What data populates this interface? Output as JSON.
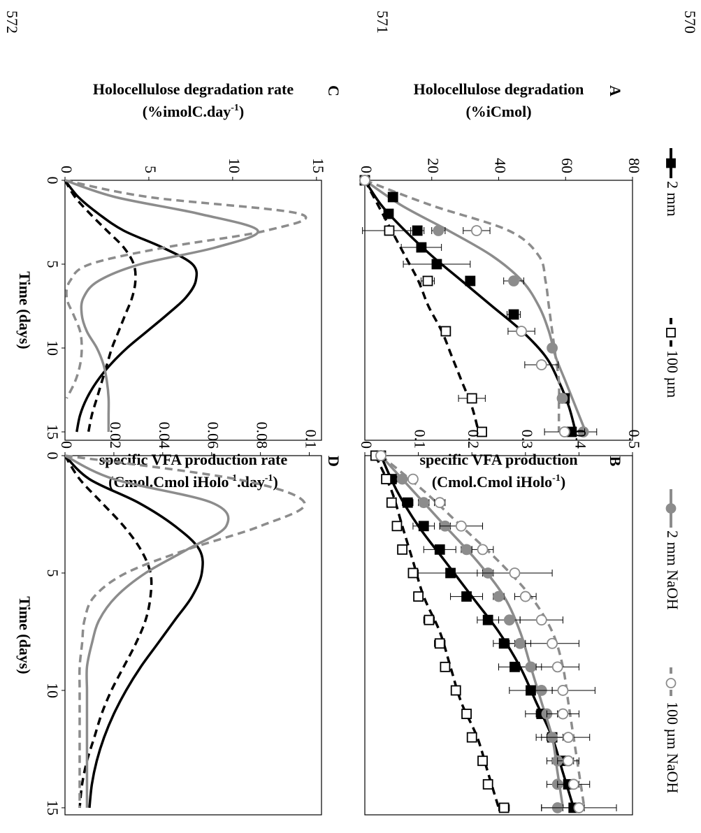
{
  "line_numbers": [
    "570",
    "571",
    "572"
  ],
  "chart_data": [
    {
      "type": "scatter",
      "panel": "A",
      "ylabel": [
        [
          "Holocellulose degradation"
        ],
        [
          "(%iCmol)"
        ]
      ],
      "xlim": [
        0,
        15.5
      ],
      "ylim": [
        0,
        80
      ],
      "yticks": [
        0,
        20,
        40,
        60,
        80
      ],
      "series": [
        {
          "name": "2 mm",
          "color": "#000000",
          "dash": false,
          "marker": "square",
          "filled": true,
          "x": [
            0,
            1,
            2,
            3,
            4,
            5,
            6,
            8,
            13,
            15
          ],
          "values": [
            0,
            8.4,
            7.1,
            15.7,
            16.9,
            21.5,
            31.5,
            44.5,
            59.7,
            61.8
          ],
          "errors": [
            0,
            1,
            1,
            2,
            6,
            10,
            1,
            2,
            1,
            1
          ],
          "fit_x": [
            0,
            1.5,
            3,
            4.5,
            6,
            7.5,
            9,
            10.5,
            12,
            13.5,
            15
          ],
          "fit": [
            0,
            5,
            12,
            20,
            29,
            38,
            47,
            54,
            58,
            61,
            63
          ]
        },
        {
          "name": "100 µm",
          "color": "#000000",
          "dash": true,
          "marker": "square",
          "filled": false,
          "x": [
            0,
            3,
            6,
            9,
            13,
            15
          ],
          "values": [
            0,
            7.3,
            18.8,
            24.2,
            32,
            35
          ],
          "errors": [
            0,
            8,
            2,
            1,
            4,
            1
          ],
          "fit_x": [
            0,
            1.5,
            3,
            4.5,
            6,
            7.5,
            9,
            10.5,
            12,
            13.5,
            15
          ],
          "fit": [
            0,
            4,
            8,
            12,
            16,
            19,
            23,
            26,
            29,
            32,
            34
          ]
        },
        {
          "name": "2 mm NaOH",
          "color": "#8c8c8c",
          "dash": false,
          "marker": "circle",
          "filled": true,
          "x": [
            0,
            3,
            6,
            10,
            13,
            15
          ],
          "values": [
            0,
            22,
            44.5,
            56,
            59,
            65.3
          ],
          "errors": [
            0,
            2,
            3,
            1,
            1,
            4
          ],
          "fit_x": [
            0,
            1.5,
            3,
            4.5,
            6,
            7.5,
            9,
            10.5,
            12,
            13.5,
            15
          ],
          "fit": [
            0,
            11,
            25,
            38,
            47,
            52,
            55,
            57,
            60,
            63,
            66
          ]
        },
        {
          "name": "100 µm NaOH",
          "color": "#8c8c8c",
          "dash": true,
          "marker": "circle",
          "filled": false,
          "x": [
            0,
            3,
            9,
            11,
            15
          ],
          "values": [
            0,
            33.4,
            46.8,
            52.8,
            59.7
          ],
          "errors": [
            0,
            4,
            4,
            5,
            6
          ],
          "fit_x": [
            0,
            1.5,
            3,
            4.5,
            6,
            7.5,
            9,
            10.5,
            12,
            13.5,
            15
          ],
          "fit": [
            0,
            20,
            43,
            52,
            54,
            55,
            56,
            57,
            58,
            58,
            58
          ]
        }
      ]
    },
    {
      "type": "scatter",
      "panel": "B",
      "ylabel": [
        [
          "specific VFA production"
        ],
        [
          "(Cmol.Cmol iHolo",
          "-1",
          ")"
        ]
      ],
      "xlim": [
        0,
        15.3
      ],
      "ylim": [
        0,
        0.5
      ],
      "yticks": [
        0,
        0.1,
        0.2,
        0.3,
        0.4,
        0.5
      ],
      "series": [
        {
          "name": "2 mm",
          "color": "#000000",
          "dash": false,
          "marker": "square",
          "filled": true,
          "x": [
            0,
            1,
            2,
            3,
            4,
            5,
            6,
            7,
            8,
            9,
            10,
            11,
            12,
            13,
            14,
            15
          ],
          "values": [
            0.03,
            0.05,
            0.08,
            0.11,
            0.14,
            0.16,
            0.19,
            0.23,
            0.26,
            0.28,
            0.31,
            0.33,
            0.35,
            0.37,
            0.38,
            0.39
          ],
          "errors": [
            0,
            0.01,
            0.01,
            0.02,
            0.03,
            0.06,
            0.03,
            0.02,
            0.02,
            0.03,
            0.04,
            0.03,
            0.03,
            0.02,
            0.02,
            0.02
          ],
          "fit_x": [
            0,
            1.5,
            3,
            4.5,
            6,
            7.5,
            9,
            10.5,
            12,
            13.5,
            15
          ],
          "fit": [
            0.03,
            0.06,
            0.1,
            0.15,
            0.2,
            0.25,
            0.29,
            0.32,
            0.35,
            0.37,
            0.39
          ]
        },
        {
          "name": "100 µm",
          "color": "#000000",
          "dash": true,
          "marker": "square",
          "filled": false,
          "x": [
            0,
            1,
            2,
            3,
            4,
            5,
            6,
            7,
            8,
            9,
            10,
            11,
            12,
            13,
            14,
            15
          ],
          "values": [
            0.02,
            0.04,
            0.05,
            0.06,
            0.07,
            0.09,
            0.1,
            0.12,
            0.14,
            0.15,
            0.17,
            0.19,
            0.2,
            0.22,
            0.23,
            0.26
          ],
          "errors": [
            0,
            0.005,
            0.005,
            0.005,
            0.005,
            0.005,
            0.005,
            0.01,
            0.01,
            0.005,
            0.005,
            0.005,
            0.005,
            0.005,
            0.005,
            0.01
          ],
          "fit_x": [
            0,
            1.5,
            3,
            4.5,
            6,
            7.5,
            9,
            10.5,
            12,
            13.5,
            15
          ],
          "fit": [
            0.02,
            0.05,
            0.07,
            0.09,
            0.11,
            0.14,
            0.16,
            0.18,
            0.21,
            0.23,
            0.25
          ]
        },
        {
          "name": "2 mm NaOH",
          "color": "#8c8c8c",
          "dash": false,
          "marker": "circle",
          "filled": true,
          "x": [
            0,
            1,
            2,
            3,
            4,
            5,
            6,
            7,
            8,
            9,
            10,
            11,
            12,
            13,
            14,
            15
          ],
          "values": [
            0.03,
            0.07,
            0.11,
            0.15,
            0.19,
            0.23,
            0.25,
            0.27,
            0.29,
            0.31,
            0.33,
            0.34,
            0.35,
            0.36,
            0.36,
            0.36
          ],
          "errors": [
            0,
            0.005,
            0.01,
            0.01,
            0.01,
            0.01,
            0.01,
            0.02,
            0.02,
            0.02,
            0.02,
            0.02,
            0.02,
            0.02,
            0.02,
            0.03
          ],
          "fit_x": [
            0,
            1.5,
            3,
            4.5,
            6,
            7.5,
            9,
            10.5,
            12,
            13.5,
            15
          ],
          "fit": [
            0.03,
            0.09,
            0.15,
            0.21,
            0.26,
            0.29,
            0.31,
            0.33,
            0.35,
            0.36,
            0.37
          ]
        },
        {
          "name": "100 µm NaOH",
          "color": "#8c8c8c",
          "dash": true,
          "marker": "circle",
          "filled": false,
          "x": [
            0,
            1,
            2,
            3,
            4,
            5,
            6,
            7,
            8,
            9,
            10,
            11,
            12,
            13,
            14,
            15
          ],
          "values": [
            0.03,
            0.09,
            0.14,
            0.18,
            0.22,
            0.28,
            0.3,
            0.33,
            0.35,
            0.36,
            0.37,
            0.37,
            0.38,
            0.38,
            0.39,
            0.4
          ],
          "errors": [
            0,
            0.005,
            0.01,
            0.04,
            0.02,
            0.07,
            0.02,
            0.04,
            0.05,
            0.04,
            0.06,
            0.03,
            0.04,
            0.02,
            0.03,
            0.07
          ],
          "fit_x": [
            0,
            1.5,
            3,
            4.5,
            6,
            7.5,
            9,
            10.5,
            12,
            13.5,
            15
          ],
          "fit": [
            0.03,
            0.11,
            0.18,
            0.25,
            0.31,
            0.35,
            0.37,
            0.38,
            0.39,
            0.4,
            0.41
          ]
        }
      ]
    },
    {
      "type": "line",
      "panel": "C",
      "ylabel": [
        [
          "Holocellulose degradation rate"
        ],
        [
          "(%imolC.day",
          "-1",
          ")"
        ]
      ],
      "xlabel": "Time (days)",
      "xlim": [
        0,
        15.5
      ],
      "xticks": [
        0,
        5,
        10,
        15
      ],
      "ylim": [
        0,
        15.3
      ],
      "yticks": [
        0,
        5,
        10,
        15
      ],
      "series": [
        {
          "name": "2 mm",
          "color": "#000000",
          "dash": false,
          "x": [
            0,
            1,
            2,
            3,
            4,
            5,
            6,
            7,
            8,
            9,
            10,
            11,
            12,
            13,
            14,
            15
          ],
          "values": [
            0,
            0.8,
            2,
            3.5,
            5.8,
            7.6,
            7.8,
            7.2,
            6.1,
            4.9,
            3.7,
            2.7,
            1.9,
            1.3,
            0.9,
            0.7
          ]
        },
        {
          "name": "100 µm",
          "color": "#000000",
          "dash": true,
          "x": [
            0,
            1,
            2,
            3,
            4,
            5,
            6,
            7,
            8,
            9,
            10,
            11,
            12,
            13,
            14,
            15
          ],
          "values": [
            0,
            0.6,
            1.5,
            2.5,
            3.5,
            4.1,
            4.2,
            4,
            3.6,
            3.2,
            2.8,
            2.5,
            2.2,
            1.9,
            1.6,
            1.4
          ]
        },
        {
          "name": "2 mm NaOH",
          "color": "#8c8c8c",
          "dash": false,
          "x": [
            0,
            1,
            2,
            3,
            4,
            5,
            6,
            7,
            8,
            9,
            10,
            11,
            12,
            13,
            14,
            15
          ],
          "values": [
            0,
            3,
            8,
            11.5,
            9,
            4.5,
            2,
            1.1,
            1,
            1.3,
            1.9,
            2.3,
            2.5,
            2.6,
            2.6,
            2.6
          ]
        },
        {
          "name": "100 µm NaOH",
          "color": "#8c8c8c",
          "dash": true,
          "x": [
            0,
            1,
            2,
            3,
            4,
            5,
            6,
            7,
            8,
            9,
            10,
            11,
            12,
            13
          ],
          "values": [
            0,
            5,
            14,
            12,
            6,
            1.5,
            0.3,
            0.1,
            0.5,
            0.9,
            1,
            0.9,
            0.6,
            0.1
          ]
        }
      ]
    },
    {
      "type": "line",
      "panel": "D",
      "ylabel": [
        [
          "specific VFA production  rate"
        ],
        [
          "(Cmol.Cmol iHolo",
          "-1",
          ".day",
          "-1",
          ")"
        ]
      ],
      "xlabel": "Time (days)",
      "xlim": [
        0,
        15.3
      ],
      "xticks": [
        0,
        5,
        10,
        15
      ],
      "ylim": [
        0,
        0.105
      ],
      "yticks": [
        0,
        0.02,
        0.04,
        0.06,
        0.08,
        0.1
      ],
      "series": [
        {
          "name": "2 mm",
          "color": "#000000",
          "dash": false,
          "x": [
            0,
            1,
            2,
            3,
            4,
            5,
            6,
            7,
            8,
            9,
            10,
            11,
            12,
            13,
            14,
            15
          ],
          "values": [
            0,
            0.01,
            0.03,
            0.045,
            0.055,
            0.056,
            0.052,
            0.045,
            0.038,
            0.031,
            0.025,
            0.02,
            0.016,
            0.013,
            0.011,
            0.01
          ]
        },
        {
          "name": "100 µm",
          "color": "#000000",
          "dash": true,
          "x": [
            0,
            1,
            2,
            3,
            4,
            5,
            6,
            7,
            8,
            9,
            10,
            11,
            12,
            13,
            14,
            15
          ],
          "values": [
            0,
            0.006,
            0.015,
            0.024,
            0.031,
            0.035,
            0.035,
            0.033,
            0.029,
            0.024,
            0.019,
            0.015,
            0.012,
            0.009,
            0.007,
            0.006
          ]
        },
        {
          "name": "2 mm NaOH",
          "color": "#8c8c8c",
          "dash": false,
          "x": [
            0,
            1,
            2,
            3,
            4,
            5,
            6,
            7,
            8,
            9,
            10,
            11,
            12,
            13,
            14,
            15
          ],
          "values": [
            0,
            0.02,
            0.06,
            0.066,
            0.05,
            0.033,
            0.021,
            0.014,
            0.011,
            0.009,
            0.009,
            0.009,
            0.009,
            0.009,
            0.009,
            0.009
          ]
        },
        {
          "name": "100 µm NaOH",
          "color": "#8c8c8c",
          "dash": true,
          "x": [
            0,
            1,
            2,
            3,
            4,
            5,
            6,
            7,
            8,
            9,
            10,
            11,
            12,
            13,
            14,
            15
          ],
          "values": [
            0,
            0.07,
            0.098,
            0.08,
            0.05,
            0.025,
            0.012,
            0.008,
            0.007,
            0.006,
            0.006,
            0.006,
            0.006,
            0.006,
            0.006,
            0.006
          ]
        }
      ]
    }
  ]
}
